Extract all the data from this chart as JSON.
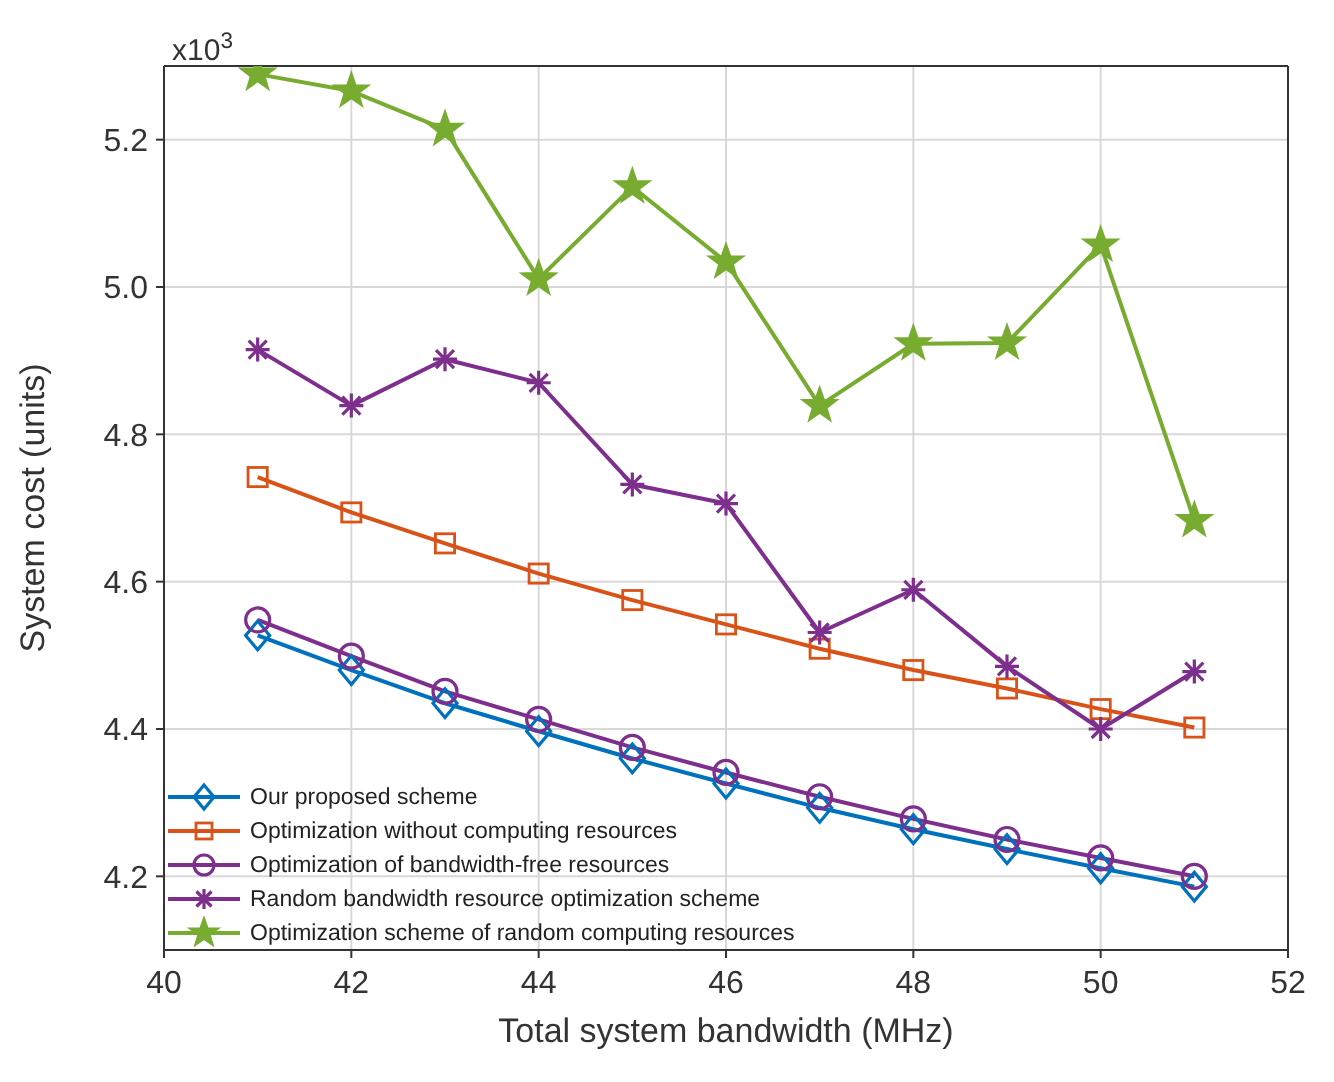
{
  "chart_data": {
    "type": "line",
    "xlabel": "Total system bandwidth (MHz)",
    "ylabel": "System cost (units)",
    "annotations": [
      "x10$^{3}$"
    ],
    "x": [
      41,
      42,
      43,
      44,
      45,
      46,
      47,
      48,
      49,
      50,
      51
    ],
    "xlim": [
      40,
      52
    ],
    "xticks": [
      40,
      42,
      44,
      46,
      48,
      50,
      52
    ],
    "ylim": [
      4.1,
      5.3
    ],
    "yticks": [
      4.2,
      4.4,
      4.6,
      4.8,
      {
        "value": 5,
        "label": "5.0"
      },
      5.2
    ],
    "grid": true,
    "legend": "bottom left",
    "series": [
      {
        "name": "Our proposed scheme",
        "color": "#0072bd",
        "marker": "diamond",
        "values": [
          4.527,
          4.48,
          4.435,
          4.397,
          4.36,
          4.326,
          4.293,
          4.264,
          4.237,
          4.211,
          4.186
        ]
      },
      {
        "name": "Optimization without computing resources",
        "color": "#d95319",
        "marker": "square",
        "values": [
          4.742,
          4.694,
          4.652,
          4.611,
          4.575,
          4.542,
          4.509,
          4.48,
          4.455,
          4.427,
          4.402
        ]
      },
      {
        "name": "Optimization of bandwidth-free resources",
        "color": "#7e2f8e",
        "marker": "circle",
        "values": [
          4.548,
          4.499,
          4.451,
          4.413,
          4.375,
          4.341,
          4.308,
          4.278,
          4.25,
          4.225,
          4.2
        ]
      },
      {
        "name": "Random bandwidth resource optimization scheme",
        "color": "#7e2f8e",
        "marker": "cross",
        "values": [
          4.915,
          4.839,
          4.902,
          4.87,
          4.732,
          4.706,
          4.531,
          4.589,
          4.485,
          4.4,
          4.478
        ]
      },
      {
        "name": "Optimization scheme of random computing resources",
        "color": "#77ac30",
        "marker": "star",
        "values": [
          5.289,
          5.266,
          5.214,
          5.011,
          5.136,
          5.034,
          4.839,
          4.923,
          4.924,
          5.057,
          4.683
        ]
      }
    ]
  }
}
